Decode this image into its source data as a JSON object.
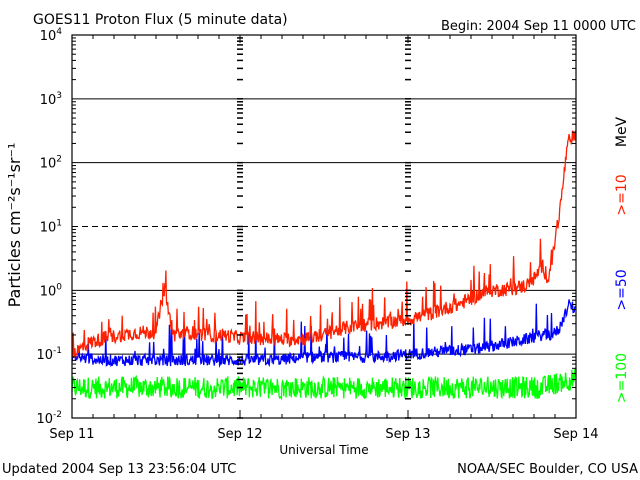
{
  "chart_data": {
    "type": "line",
    "title": "GOES11 Proton Flux (5 minute data)",
    "begin_label": "Begin: 2004 Sep 11 0000 UTC",
    "ylabel": "Particles cm⁻²s⁻¹sr⁻¹",
    "xlabel": "Universal Time",
    "y_scale": "log",
    "ylim": [
      0.01,
      10000
    ],
    "y_ticks": [
      {
        "value": 0.01,
        "base": "10",
        "exp": "-2"
      },
      {
        "value": 0.1,
        "base": "10",
        "exp": "-1"
      },
      {
        "value": 1,
        "base": "10",
        "exp": "0"
      },
      {
        "value": 10,
        "base": "10",
        "exp": "1"
      },
      {
        "value": 100,
        "base": "10",
        "exp": "2"
      },
      {
        "value": 1000,
        "base": "10",
        "exp": "3"
      },
      {
        "value": 10000,
        "base": "10",
        "exp": "4"
      }
    ],
    "x_ticks": [
      "Sep 11",
      "Sep 12",
      "Sep 13",
      "Sep 14"
    ],
    "xlim_days": [
      0,
      3
    ],
    "grid": true,
    "unit_label": "MeV",
    "series": [
      {
        "name": ">=10",
        "color": "#ff2000",
        "points": [
          [
            0.0,
            0.1
          ],
          [
            0.1,
            0.15
          ],
          [
            0.2,
            0.18
          ],
          [
            0.3,
            0.2
          ],
          [
            0.4,
            0.22
          ],
          [
            0.5,
            0.22
          ],
          [
            0.55,
            1.1
          ],
          [
            0.6,
            0.2
          ],
          [
            0.7,
            0.22
          ],
          [
            0.8,
            0.2
          ],
          [
            0.9,
            0.2
          ],
          [
            1.0,
            0.18
          ],
          [
            1.1,
            0.18
          ],
          [
            1.2,
            0.17
          ],
          [
            1.3,
            0.17
          ],
          [
            1.4,
            0.18
          ],
          [
            1.5,
            0.2
          ],
          [
            1.6,
            0.25
          ],
          [
            1.7,
            0.28
          ],
          [
            1.8,
            0.3
          ],
          [
            1.9,
            0.32
          ],
          [
            2.0,
            0.35
          ],
          [
            2.1,
            0.4
          ],
          [
            2.2,
            0.5
          ],
          [
            2.3,
            0.6
          ],
          [
            2.4,
            0.8
          ],
          [
            2.5,
            1.0
          ],
          [
            2.6,
            1.05
          ],
          [
            2.65,
            1.1
          ],
          [
            2.7,
            1.2
          ],
          [
            2.75,
            1.5
          ],
          [
            2.8,
            2.5
          ],
          [
            2.83,
            1.5
          ],
          [
            2.86,
            3.0
          ],
          [
            2.88,
            8.0
          ],
          [
            2.9,
            15
          ],
          [
            2.92,
            40
          ],
          [
            2.94,
            120
          ],
          [
            2.96,
            230
          ],
          [
            2.98,
            250
          ],
          [
            3.0,
            240
          ]
        ]
      },
      {
        "name": ">=50",
        "color": "#0000ff",
        "points": [
          [
            0.0,
            0.09
          ],
          [
            0.2,
            0.08
          ],
          [
            0.4,
            0.08
          ],
          [
            0.6,
            0.08
          ],
          [
            0.8,
            0.08
          ],
          [
            1.0,
            0.08
          ],
          [
            1.2,
            0.08
          ],
          [
            1.4,
            0.09
          ],
          [
            1.6,
            0.09
          ],
          [
            1.8,
            0.09
          ],
          [
            2.0,
            0.1
          ],
          [
            2.2,
            0.11
          ],
          [
            2.4,
            0.12
          ],
          [
            2.6,
            0.15
          ],
          [
            2.7,
            0.17
          ],
          [
            2.8,
            0.2
          ],
          [
            2.86,
            0.2
          ],
          [
            2.9,
            0.25
          ],
          [
            2.93,
            0.4
          ],
          [
            2.96,
            0.6
          ],
          [
            2.98,
            0.55
          ],
          [
            3.0,
            0.45
          ]
        ]
      },
      {
        "name": ">=100",
        "color": "#00ff00",
        "points": [
          [
            0.0,
            0.03
          ],
          [
            0.5,
            0.03
          ],
          [
            1.0,
            0.03
          ],
          [
            1.5,
            0.03
          ],
          [
            2.0,
            0.03
          ],
          [
            2.5,
            0.03
          ],
          [
            2.8,
            0.03
          ],
          [
            2.95,
            0.04
          ],
          [
            3.0,
            0.04
          ]
        ]
      }
    ]
  },
  "footer": {
    "updated": "Updated 2004 Sep 13 23:56:04 UTC",
    "credit": "NOAA/SEC Boulder, CO USA"
  }
}
